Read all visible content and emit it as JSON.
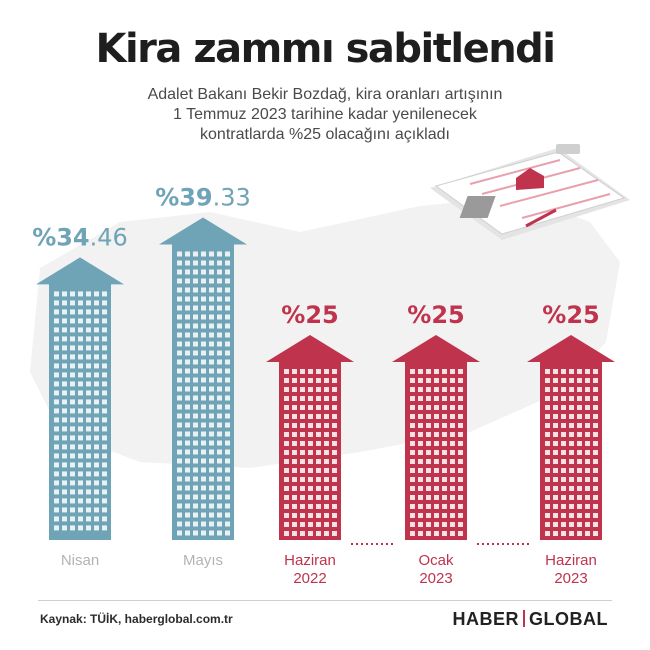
{
  "title": "Kira zammı sabitlendi",
  "subtitle_lines": [
    "Adalet Bakanı Bekir Bozdağ, kira oranları artışının",
    "1 Temmuz 2023 tarihine kadar yenilenecek",
    "kontratlarda %25 olacağını açıkladı"
  ],
  "colors": {
    "teal": "#6ea4b6",
    "red": "#c0334d",
    "text": "#1e1e1e",
    "muted": "#b3b3b3"
  },
  "chart_data": {
    "type": "bar",
    "title": "Kira zammı sabitlendi",
    "categories": [
      "Nisan",
      "Mayıs",
      "Haziran 2022",
      "Ocak 2023",
      "Haziran 2023"
    ],
    "values": [
      34.46,
      39.33,
      25,
      25,
      25
    ],
    "value_labels": [
      {
        "prefix": "%",
        "main": "34",
        "decimal": ".46"
      },
      {
        "prefix": "%",
        "main": "39",
        "decimal": ".33"
      },
      {
        "prefix": "%",
        "main": "25",
        "decimal": ""
      },
      {
        "prefix": "%",
        "main": "25",
        "decimal": ""
      },
      {
        "prefix": "%",
        "main": "25",
        "decimal": ""
      }
    ],
    "category_label_lines": [
      [
        "Nisan"
      ],
      [
        "Mayıs"
      ],
      [
        "Haziran",
        "2022"
      ],
      [
        "Ocak",
        "2023"
      ],
      [
        "Haziran",
        "2023"
      ]
    ],
    "bar_colors": [
      "#6ea4b6",
      "#6ea4b6",
      "#c0334d",
      "#c0334d",
      "#c0334d"
    ],
    "label_colors": [
      "#b3b3b3",
      "#b3b3b3",
      "#c0334d",
      "#c0334d",
      "#c0334d"
    ],
    "ylim": [
      0,
      40
    ]
  },
  "footer": {
    "source": "Kaynak: TÜİK, haberglobal.com.tr",
    "brand_left": "HABER",
    "brand_right": "GLOBAL"
  }
}
